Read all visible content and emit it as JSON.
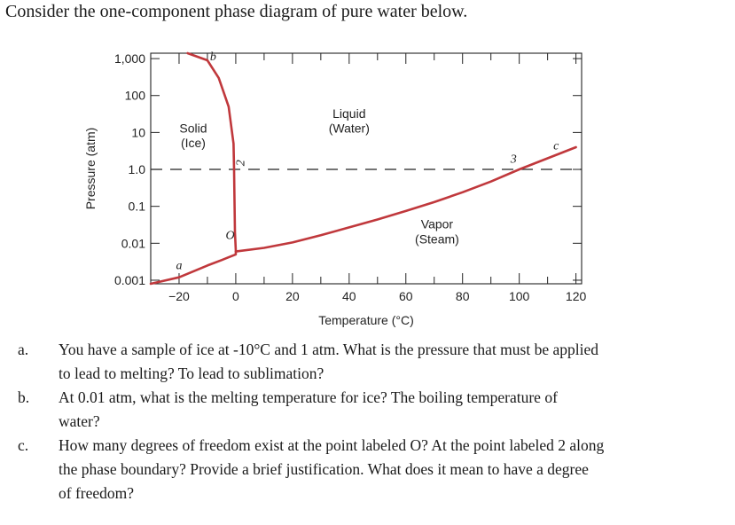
{
  "heading": "Consider the one-component phase diagram of pure water below.",
  "chart_data": {
    "type": "line",
    "xlabel": "Temperature (°C)",
    "ylabel": "Pressure (atm)",
    "x_ticks": [
      -20,
      0,
      20,
      40,
      60,
      80,
      100,
      120
    ],
    "y_ticks": [
      "0.001",
      "0.01",
      "0.1",
      "1.0",
      "10",
      "100",
      "1,000"
    ],
    "y_tick_values": [
      0.001,
      0.01,
      0.1,
      1,
      10,
      100,
      1000
    ],
    "xlim": [
      -30,
      122
    ],
    "ylim": [
      0.0008,
      1400
    ],
    "y_scale": "log",
    "series": [
      {
        "x": [
          -30,
          -20,
          -10,
          -5,
          0,
          0.01
        ],
        "y": [
          0.0005,
          0.0012,
          0.0025,
          0.0035,
          0.005,
          0.006
        ]
      },
      {
        "x": [
          0.01,
          10,
          20,
          30,
          40,
          50,
          60,
          70,
          80,
          90,
          100,
          110,
          120
        ],
        "y": [
          0.006,
          0.0075,
          0.0105,
          0.0165,
          0.027,
          0.044,
          0.075,
          0.13,
          0.24,
          0.47,
          1.0,
          2.0,
          4.0
        ]
      },
      {
        "x": [
          0.01,
          -0.3,
          -0.5,
          -0.6,
          -0.8,
          -2.5,
          -6,
          -10,
          -17
        ],
        "y": [
          0.006,
          0.02,
          0.3,
          1.0,
          5,
          50,
          300,
          900,
          1400
        ]
      }
    ],
    "reference_line": {
      "y": 1.0,
      "style": "dashed"
    },
    "region_labels": [
      {
        "text": "Solid",
        "x": -15,
        "y": 10
      },
      {
        "text": "(Ice)",
        "x": -15,
        "y": 4
      },
      {
        "text": "Liquid",
        "x": 40,
        "y": 25
      },
      {
        "text": "(Water)",
        "x": 40,
        "y": 10
      },
      {
        "text": "Vapor",
        "x": 71,
        "y": 0.025
      },
      {
        "text": "(Steam)",
        "x": 71,
        "y": 0.01
      }
    ],
    "point_labels": [
      {
        "text": "a",
        "x": -20,
        "y": 0.002
      },
      {
        "text": "b",
        "x": -8,
        "y": 900
      },
      {
        "text": "c",
        "x": 113,
        "y": 3.5
      },
      {
        "text": "O",
        "x": -2,
        "y": 0.013
      },
      {
        "text": "2",
        "x": 3,
        "y": 1.5
      },
      {
        "text": "3",
        "x": 98,
        "y": 1.5
      }
    ]
  },
  "questions": [
    {
      "marker": "a.",
      "lines": [
        "You have a sample of ice at -10°C and 1 atm. What is the pressure that must be applied",
        "to lead to melting? To lead to sublimation?"
      ]
    },
    {
      "marker": "b.",
      "lines": [
        "At 0.01 atm, what is the melting temperature for ice? The boiling temperature of",
        "water?"
      ]
    },
    {
      "marker": "c.",
      "lines": [
        "How many degrees of freedom exist at the point labeled O? At the point labeled 2 along",
        "the phase boundary? Provide a brief justification. What does it mean to have a degree",
        "of freedom?"
      ]
    }
  ]
}
